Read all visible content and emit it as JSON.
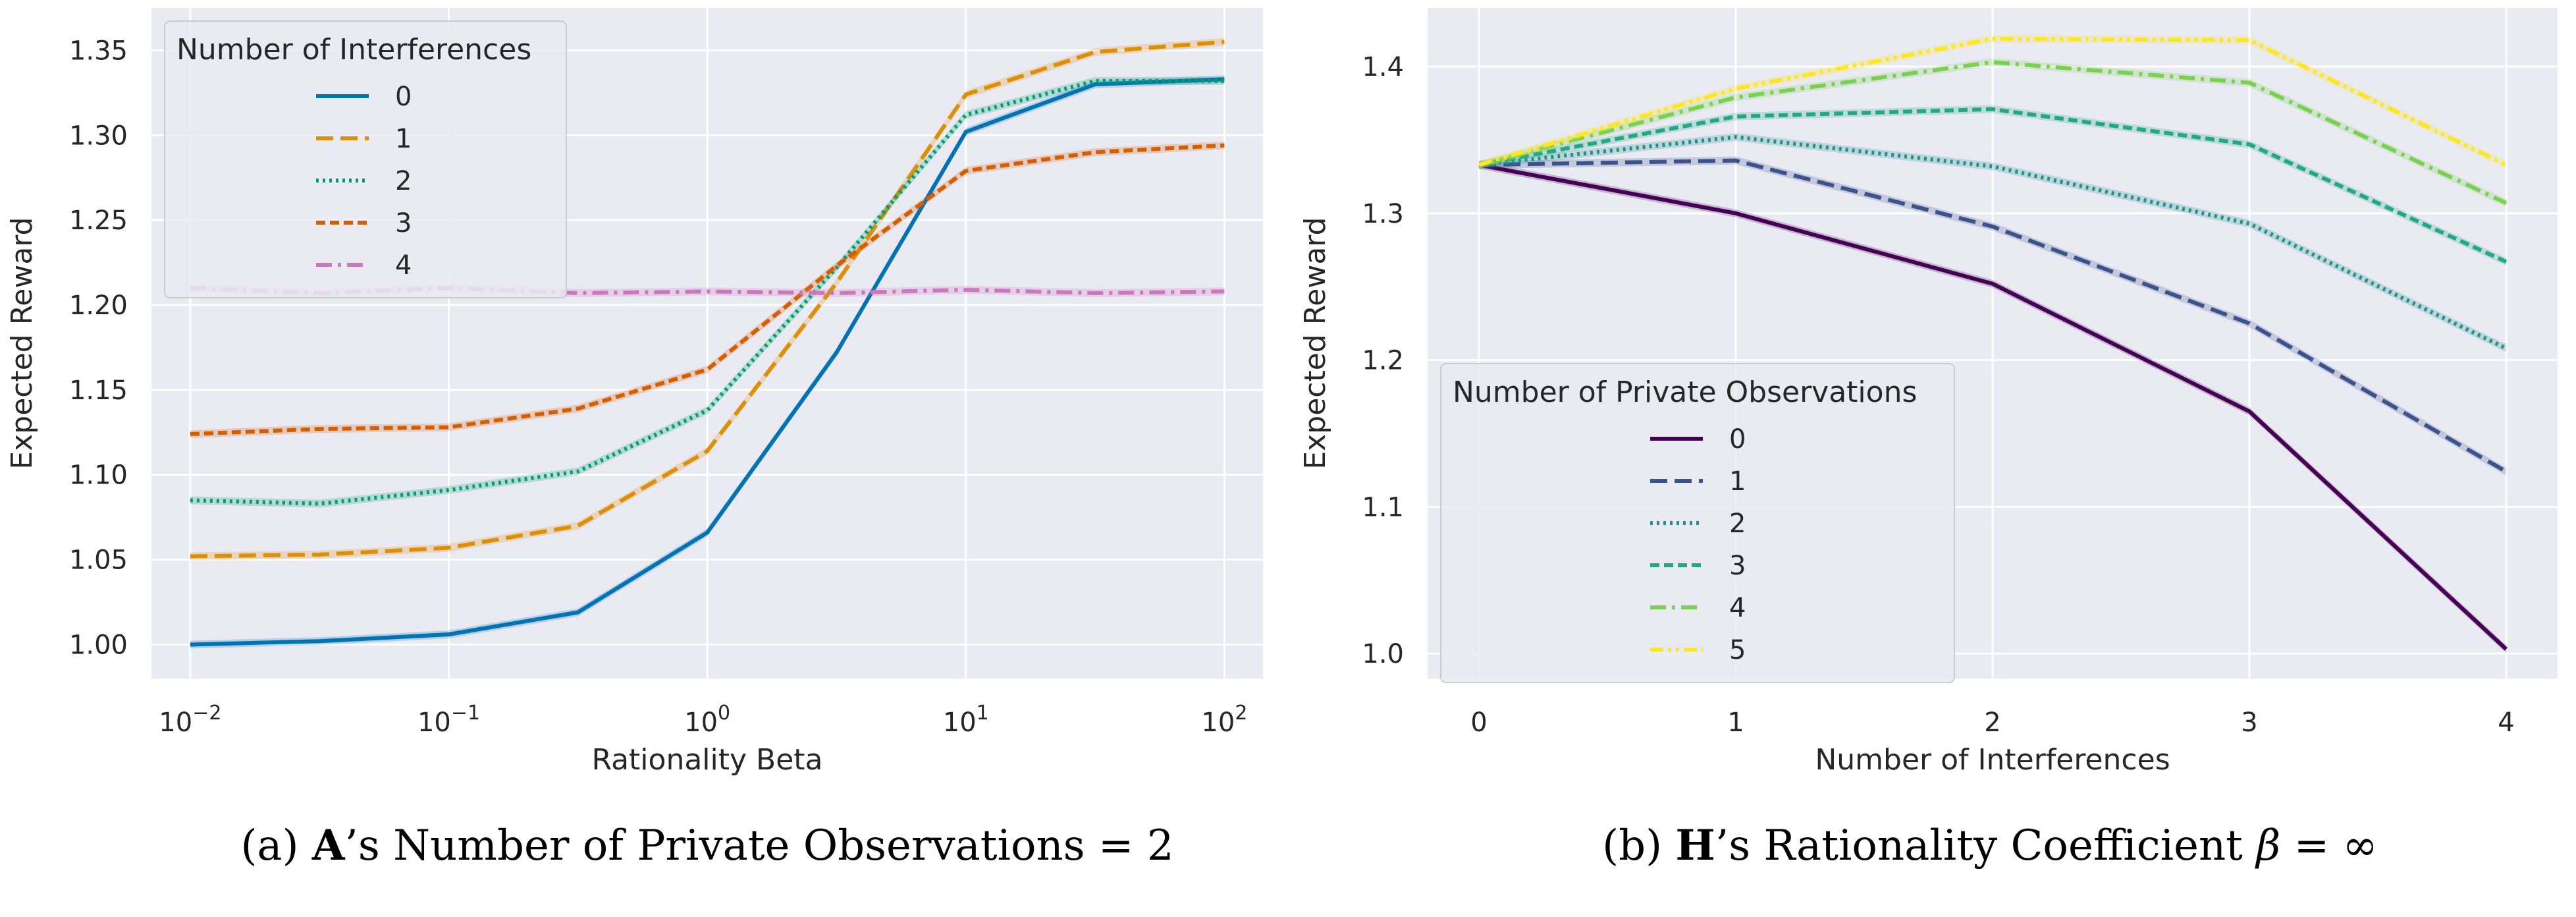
{
  "chart_data": [
    {
      "type": "line",
      "caption": {
        "prefix": "(a) ",
        "bold": "A",
        "rest": "’s Number of Private Observations = 2"
      },
      "xlabel": "Rationality Beta",
      "ylabel": "Expected Reward",
      "xscale": "log",
      "xlim": [
        0.00708,
        141
      ],
      "ylim": [
        0.98,
        1.375
      ],
      "xticks": [
        0.01,
        0.1,
        1,
        10,
        100
      ],
      "xtick_labels": [
        {
          "base": "10",
          "exp": "−2"
        },
        {
          "base": "10",
          "exp": "−1"
        },
        {
          "base": "10",
          "exp": "0"
        },
        {
          "base": "10",
          "exp": "1"
        },
        {
          "base": "10",
          "exp": "2"
        }
      ],
      "yticks": [
        1.0,
        1.05,
        1.1,
        1.15,
        1.2,
        1.25,
        1.3,
        1.35
      ],
      "ytick_labels": [
        "1.00",
        "1.05",
        "1.10",
        "1.15",
        "1.20",
        "1.25",
        "1.30",
        "1.35"
      ],
      "grid": true,
      "legend": {
        "title": "Number of Interferences",
        "placement": "top-left"
      },
      "x": [
        0.01,
        0.0316,
        0.1,
        0.316,
        1,
        3.16,
        10,
        31.6,
        100
      ],
      "series": [
        {
          "name": "0",
          "color": "#0173b2",
          "dash": "solid",
          "values": [
            1.0,
            1.002,
            1.006,
            1.019,
            1.066,
            1.172,
            1.302,
            1.33,
            1.333
          ]
        },
        {
          "name": "1",
          "color": "#de8f05",
          "dash": "dashed",
          "values": [
            1.052,
            1.053,
            1.057,
            1.07,
            1.114,
            1.213,
            1.324,
            1.349,
            1.355
          ]
        },
        {
          "name": "2",
          "color": "#029e73",
          "dash": "dotted",
          "values": [
            1.085,
            1.083,
            1.091,
            1.102,
            1.138,
            1.222,
            1.312,
            1.332,
            1.332
          ]
        },
        {
          "name": "3",
          "color": "#d55e00",
          "dash": "densedash",
          "values": [
            1.124,
            1.127,
            1.128,
            1.139,
            1.162,
            1.223,
            1.279,
            1.29,
            1.294
          ]
        },
        {
          "name": "4",
          "color": "#cc78bc",
          "dash": "dashdot",
          "values": [
            1.21,
            1.207,
            1.21,
            1.207,
            1.208,
            1.207,
            1.209,
            1.207,
            1.208
          ]
        }
      ]
    },
    {
      "type": "line",
      "caption": {
        "prefix": "(b) ",
        "bold": "H",
        "rest": "’s Rationality Coefficient ",
        "math_sym": "β",
        "math_rest": " = ∞"
      },
      "xlabel": "Number of Interferences",
      "ylabel": "Expected Reward",
      "xscale": "linear",
      "xlim": [
        -0.2,
        4.2
      ],
      "ylim": [
        0.983,
        1.44
      ],
      "xticks": [
        0,
        1,
        2,
        3,
        4
      ],
      "xtick_labels": [
        "0",
        "1",
        "2",
        "3",
        "4"
      ],
      "yticks": [
        1.0,
        1.1,
        1.2,
        1.3,
        1.4
      ],
      "ytick_labels": [
        "1.0",
        "1.1",
        "1.2",
        "1.3",
        "1.4"
      ],
      "grid": true,
      "legend": {
        "title": "Number of Private Observations",
        "placement": "lower-left"
      },
      "x": [
        0,
        1,
        2,
        3,
        4
      ],
      "series": [
        {
          "name": "0",
          "color": "#440154",
          "dash": "solid",
          "values": [
            1.333,
            1.3,
            1.252,
            1.165,
            1.003
          ]
        },
        {
          "name": "1",
          "color": "#3b528b",
          "dash": "dashed",
          "values": [
            1.333,
            1.336,
            1.291,
            1.225,
            1.124
          ]
        },
        {
          "name": "2",
          "color": "#21918c",
          "dash": "dotted",
          "values": [
            1.333,
            1.352,
            1.332,
            1.293,
            1.208
          ]
        },
        {
          "name": "3",
          "color": "#22a884",
          "dash": "densedash",
          "values": [
            1.333,
            1.366,
            1.371,
            1.347,
            1.267
          ]
        },
        {
          "name": "4",
          "color": "#7ad151",
          "dash": "dashdot",
          "values": [
            1.333,
            1.379,
            1.403,
            1.389,
            1.307
          ]
        },
        {
          "name": "5",
          "color": "#fde725",
          "dash": "dashdotdot",
          "values": [
            1.333,
            1.385,
            1.419,
            1.418,
            1.333
          ]
        }
      ]
    }
  ]
}
